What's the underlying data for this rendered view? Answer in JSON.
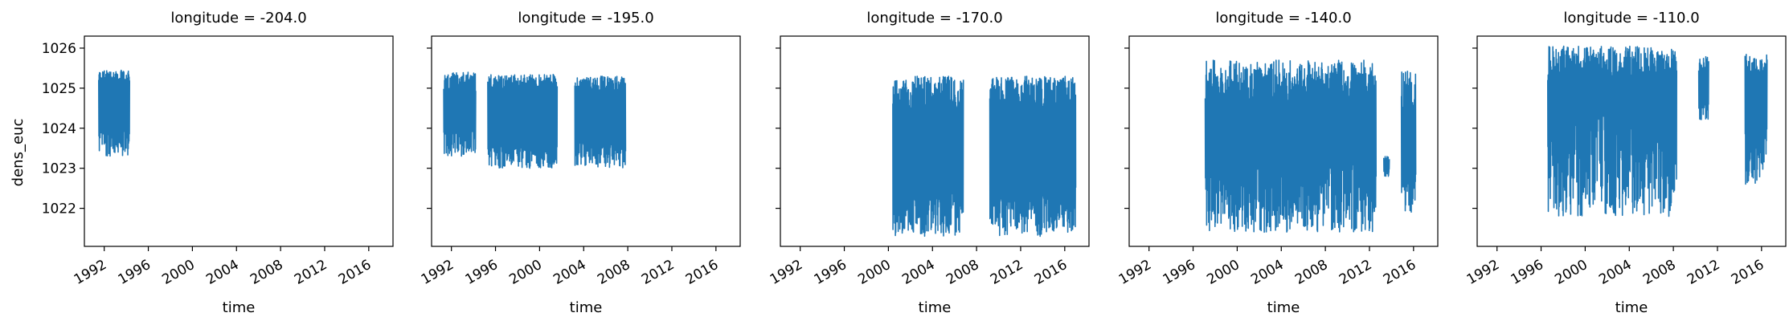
{
  "chart_data": {
    "type": "line",
    "xlabel": "time",
    "ylabel": "dens_euc",
    "xlim": [
      1990.2,
      2018.2
    ],
    "ylim": [
      1021.05,
      1026.3
    ],
    "x_ticks": [
      1992,
      1996,
      2000,
      2004,
      2008,
      2012,
      2016
    ],
    "y_ticks": [
      1022,
      1023,
      1024,
      1025,
      1026
    ],
    "color": "#1f77b4",
    "panels": [
      {
        "title": "longitude = -204.0",
        "segments": [
          {
            "t0": 1991.5,
            "t1": 1994.3,
            "ymin_range": [
              1023.3,
              1024.1
            ],
            "ymax_range": [
              1025.1,
              1025.45
            ]
          }
        ]
      },
      {
        "title": "longitude = -195.0",
        "segments": [
          {
            "t0": 1991.3,
            "t1": 1994.2,
            "ymin_range": [
              1023.3,
              1024.0
            ],
            "ymax_range": [
              1024.9,
              1025.4
            ]
          },
          {
            "t0": 1995.3,
            "t1": 2001.6,
            "ymin_range": [
              1023.0,
              1023.8
            ],
            "ymax_range": [
              1024.9,
              1025.35
            ]
          },
          {
            "t0": 2003.2,
            "t1": 2007.8,
            "ymin_range": [
              1023.0,
              1023.8
            ],
            "ymax_range": [
              1024.9,
              1025.3
            ]
          }
        ]
      },
      {
        "title": "longitude = -170.0",
        "segments": [
          {
            "t0": 2000.4,
            "t1": 2006.8,
            "ymin_range": [
              1021.3,
              1022.5
            ],
            "ymax_range": [
              1024.4,
              1025.3
            ]
          },
          {
            "t0": 2009.2,
            "t1": 2017.0,
            "ymin_range": [
              1021.3,
              1022.6
            ],
            "ymax_range": [
              1024.4,
              1025.3
            ]
          }
        ]
      },
      {
        "title": "longitude = -140.0",
        "segments": [
          {
            "t0": 1997.1,
            "t1": 2012.6,
            "ymin_range": [
              1021.4,
              1023.3
            ],
            "ymax_range": [
              1024.5,
              1025.7
            ]
          },
          {
            "t0": 2013.3,
            "t1": 2013.8,
            "ymin_range": [
              1022.8,
              1023.0
            ],
            "ymax_range": [
              1023.1,
              1023.3
            ]
          },
          {
            "t0": 2014.9,
            "t1": 2016.2,
            "ymin_range": [
              1021.9,
              1023.0
            ],
            "ymax_range": [
              1024.2,
              1025.5
            ]
          }
        ]
      },
      {
        "title": "longitude = -110.0",
        "segments": [
          {
            "t0": 1996.6,
            "t1": 2008.3,
            "ymin_range": [
              1021.8,
              1024.6
            ],
            "ymax_range": [
              1025.2,
              1026.05
            ]
          },
          {
            "t0": 2010.3,
            "t1": 2011.2,
            "ymin_range": [
              1024.2,
              1024.8
            ],
            "ymax_range": [
              1025.3,
              1025.8
            ]
          },
          {
            "t0": 2014.5,
            "t1": 2016.5,
            "ymin_range": [
              1022.6,
              1024.0
            ],
            "ymax_range": [
              1025.2,
              1025.85
            ]
          }
        ]
      }
    ]
  }
}
